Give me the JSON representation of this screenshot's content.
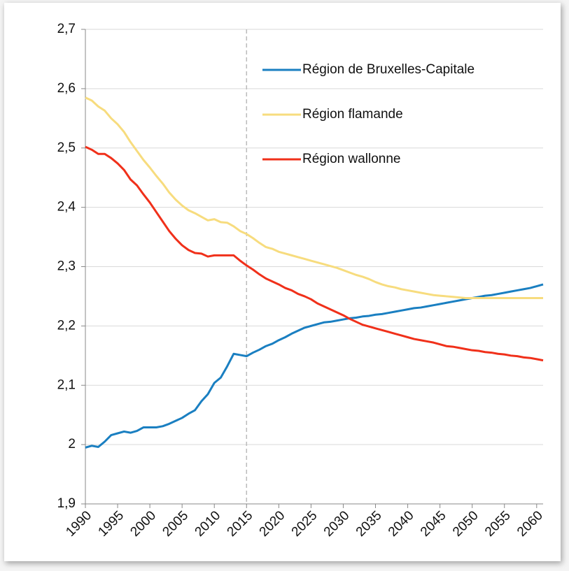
{
  "chart_data": {
    "type": "line",
    "x": [
      1990,
      1991,
      1992,
      1993,
      1994,
      1995,
      1996,
      1997,
      1998,
      1999,
      2000,
      2001,
      2002,
      2003,
      2004,
      2005,
      2006,
      2007,
      2008,
      2009,
      2010,
      2011,
      2012,
      2013,
      2014,
      2015,
      2016,
      2017,
      2018,
      2019,
      2020,
      2021,
      2022,
      2023,
      2024,
      2025,
      2026,
      2027,
      2028,
      2029,
      2030,
      2031,
      2032,
      2033,
      2034,
      2035,
      2036,
      2037,
      2038,
      2039,
      2040,
      2041,
      2042,
      2043,
      2044,
      2045,
      2046,
      2047,
      2048,
      2049,
      2050,
      2051,
      2052,
      2053,
      2054,
      2055,
      2056,
      2057,
      2058,
      2059,
      2060,
      2061
    ],
    "series": [
      {
        "name": "Région de Bruxelles-Capitale",
        "color": "#1a7fc1",
        "values": [
          1.995,
          1.998,
          1.996,
          2.005,
          2.016,
          2.019,
          2.022,
          2.02,
          2.023,
          2.029,
          2.029,
          2.029,
          2.031,
          2.035,
          2.04,
          2.045,
          2.052,
          2.058,
          2.073,
          2.085,
          2.104,
          2.113,
          2.132,
          2.153,
          2.151,
          2.149,
          2.155,
          2.16,
          2.166,
          2.17,
          2.176,
          2.181,
          2.187,
          2.192,
          2.197,
          2.2,
          2.203,
          2.206,
          2.207,
          2.209,
          2.211,
          2.213,
          2.214,
          2.216,
          2.217,
          2.219,
          2.22,
          2.222,
          2.224,
          2.226,
          2.228,
          2.23,
          2.231,
          2.233,
          2.235,
          2.237,
          2.239,
          2.241,
          2.243,
          2.245,
          2.247,
          2.249,
          2.251,
          2.252,
          2.254,
          2.256,
          2.258,
          2.26,
          2.262,
          2.264,
          2.267,
          2.27
        ]
      },
      {
        "name": "Région flamande",
        "color": "#f7dc7e",
        "values": [
          2.585,
          2.58,
          2.57,
          2.563,
          2.55,
          2.54,
          2.527,
          2.51,
          2.495,
          2.48,
          2.467,
          2.453,
          2.44,
          2.425,
          2.413,
          2.403,
          2.395,
          2.39,
          2.384,
          2.378,
          2.38,
          2.375,
          2.374,
          2.368,
          2.36,
          2.355,
          2.348,
          2.34,
          2.333,
          2.33,
          2.325,
          2.322,
          2.319,
          2.316,
          2.313,
          2.31,
          2.307,
          2.304,
          2.301,
          2.298,
          2.294,
          2.29,
          2.286,
          2.283,
          2.279,
          2.274,
          2.27,
          2.267,
          2.265,
          2.262,
          2.26,
          2.258,
          2.256,
          2.254,
          2.252,
          2.251,
          2.25,
          2.249,
          2.248,
          2.247,
          2.247,
          2.247,
          2.247,
          2.247,
          2.247,
          2.247,
          2.247,
          2.247,
          2.247,
          2.247,
          2.247,
          2.247
        ]
      },
      {
        "name": "Région wallonne",
        "color": "#f0301a",
        "values": [
          2.502,
          2.497,
          2.49,
          2.49,
          2.483,
          2.474,
          2.463,
          2.447,
          2.437,
          2.422,
          2.408,
          2.392,
          2.376,
          2.36,
          2.347,
          2.336,
          2.328,
          2.323,
          2.322,
          2.317,
          2.319,
          2.319,
          2.319,
          2.319,
          2.31,
          2.302,
          2.295,
          2.287,
          2.28,
          2.275,
          2.27,
          2.264,
          2.26,
          2.254,
          2.25,
          2.245,
          2.238,
          2.233,
          2.228,
          2.223,
          2.218,
          2.212,
          2.207,
          2.202,
          2.199,
          2.196,
          2.193,
          2.19,
          2.187,
          2.184,
          2.181,
          2.178,
          2.176,
          2.174,
          2.172,
          2.169,
          2.166,
          2.165,
          2.163,
          2.161,
          2.159,
          2.158,
          2.156,
          2.155,
          2.153,
          2.152,
          2.15,
          2.149,
          2.147,
          2.146,
          2.144,
          2.142
        ]
      }
    ],
    "xlim": [
      1990,
      2061
    ],
    "xticks": [
      1990,
      1995,
      2000,
      2005,
      2010,
      2015,
      2020,
      2025,
      2030,
      2035,
      2040,
      2045,
      2050,
      2055,
      2060
    ],
    "ylim": [
      1.9,
      2.7
    ],
    "yticks": [
      {
        "value": 1.9,
        "label": "1,9"
      },
      2,
      {
        "value": 2.1,
        "label": "2,1"
      },
      {
        "value": 2.2,
        "label": "2,2"
      },
      {
        "value": 2.3,
        "label": "2,3"
      },
      {
        "value": 2.4,
        "label": "2,4"
      },
      {
        "value": 2.5,
        "label": "2,5"
      },
      {
        "value": 2.6,
        "label": "2,6"
      },
      {
        "value": 2.7,
        "label": "2,7"
      }
    ],
    "reference_x": 2015,
    "grid": true,
    "legend": "upper right"
  }
}
